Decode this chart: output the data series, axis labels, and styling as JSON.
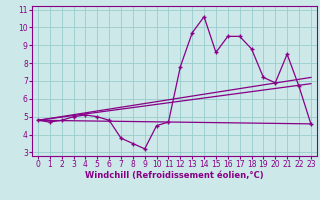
{
  "xlabel": "Windchill (Refroidissement éolien,°C)",
  "bg_color": "#cce8e8",
  "grid_color": "#99cccc",
  "line_color": "#880088",
  "spine_color": "#880088",
  "x_data": [
    0,
    1,
    2,
    3,
    4,
    5,
    6,
    7,
    8,
    9,
    10,
    11,
    12,
    13,
    14,
    15,
    16,
    17,
    18,
    19,
    20,
    21,
    22,
    23
  ],
  "y_main": [
    4.8,
    4.7,
    4.8,
    5.0,
    5.1,
    5.0,
    4.8,
    3.8,
    3.5,
    3.2,
    4.5,
    4.7,
    7.8,
    9.7,
    10.6,
    8.6,
    9.5,
    9.5,
    8.8,
    7.2,
    6.9,
    8.5,
    6.7,
    4.6
  ],
  "trend_lines": [
    {
      "x": [
        0,
        23
      ],
      "y": [
        4.8,
        4.6
      ]
    },
    {
      "x": [
        0,
        23
      ],
      "y": [
        4.8,
        6.85
      ]
    },
    {
      "x": [
        0,
        23
      ],
      "y": [
        4.8,
        7.2
      ]
    }
  ],
  "ylim": [
    2.8,
    11.2
  ],
  "xlim": [
    -0.5,
    23.5
  ],
  "yticks": [
    3,
    4,
    5,
    6,
    7,
    8,
    9,
    10,
    11
  ],
  "xticks": [
    0,
    1,
    2,
    3,
    4,
    5,
    6,
    7,
    8,
    9,
    10,
    11,
    12,
    13,
    14,
    15,
    16,
    17,
    18,
    19,
    20,
    21,
    22,
    23
  ],
  "tick_fontsize": 5.5,
  "xlabel_fontsize": 6.0,
  "marker_size": 3.5,
  "line_width": 0.9
}
